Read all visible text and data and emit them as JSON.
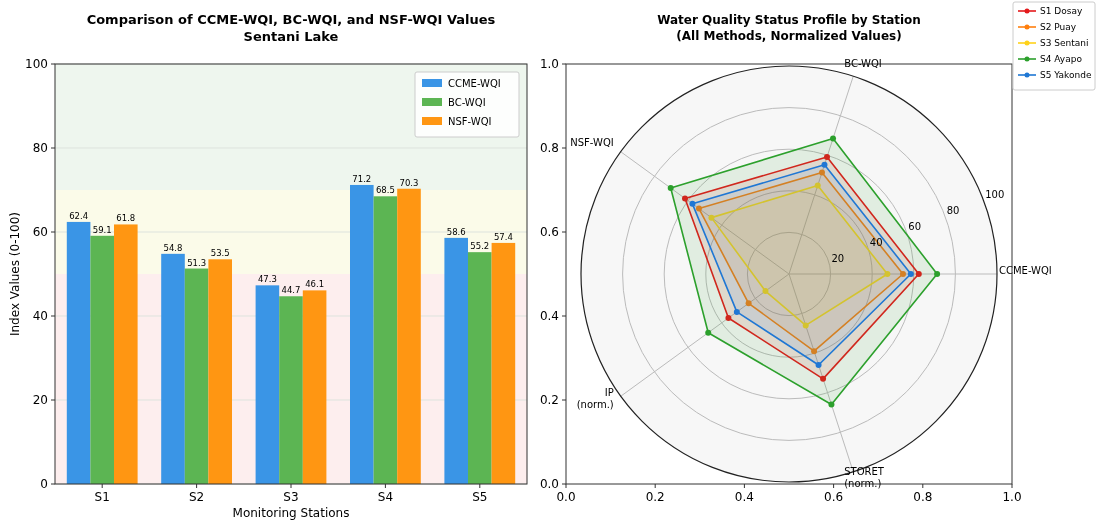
{
  "chart_data": [
    {
      "type": "bar",
      "title": "Comparison of CCME-WQI, BC-WQI, and NSF-WQI Values\nSentani Lake",
      "xlabel": "Monitoring Stations",
      "ylabel": "Index Values (0-100)",
      "categories": [
        "S1",
        "S2",
        "S3",
        "S4",
        "S5"
      ],
      "series": [
        {
          "name": "CCME-WQI",
          "color": "#3a95e6",
          "values": [
            62.4,
            54.8,
            47.3,
            71.2,
            58.6
          ]
        },
        {
          "name": "BC-WQI",
          "color": "#5cb553",
          "values": [
            59.1,
            51.3,
            44.7,
            68.5,
            55.2
          ]
        },
        {
          "name": "NSF-WQI",
          "color": "#ff9612",
          "values": [
            61.8,
            53.5,
            46.1,
            70.3,
            57.4
          ]
        }
      ],
      "ylim": [
        0,
        100
      ],
      "yticks": [
        0,
        20,
        40,
        60,
        80,
        100
      ],
      "grid": "y",
      "legend": "top right",
      "data_labels": true,
      "bands": [
        {
          "axis": "y",
          "from": 0,
          "to": 50,
          "color": "#fdeeee"
        },
        {
          "axis": "y",
          "from": 50,
          "to": 70,
          "color": "#fbfbe9"
        },
        {
          "axis": "y",
          "from": 70,
          "to": 100,
          "color": "#eef6ee"
        }
      ]
    },
    {
      "type": "scatter",
      "xlim": [
        0,
        1
      ],
      "xticks": [
        {
          "value": 0,
          "label": "0.0"
        },
        {
          "value": 0.2,
          "label": "0.2"
        },
        {
          "value": 0.4,
          "label": "0.4"
        },
        {
          "value": 0.6,
          "label": "0.6"
        },
        {
          "value": 0.8,
          "label": "0.8"
        },
        {
          "value": 1,
          "label": "1.0"
        }
      ],
      "ylim": [
        0,
        1
      ],
      "yticks": [
        {
          "value": 0,
          "label": "0.0"
        },
        {
          "value": 0.2,
          "label": "0.2"
        },
        {
          "value": 0.4,
          "label": "0.4"
        },
        {
          "value": 0.6,
          "label": "0.6"
        },
        {
          "value": 0.8,
          "label": "0.8"
        },
        {
          "value": 1,
          "label": "1.0"
        }
      ]
    },
    {
      "type": "radar",
      "title": "Water Quality Status Profile by Station\n(All Methods, Normalized Values)",
      "categories": [
        "BC-WQI",
        "CCME-WQI",
        "STORET\n(norm.)",
        "IP\n(norm.)",
        "NSF-WQI"
      ],
      "series": [
        {
          "name": "S1 Dosay",
          "color": "#e41a1c",
          "values": [
            59.1,
            62.4,
            53,
            36,
            61.8
          ]
        },
        {
          "name": "S2 Puay",
          "color": "#ff7f0e",
          "values": [
            51.3,
            54.8,
            39,
            24,
            53.5
          ]
        },
        {
          "name": "S3 Sentani",
          "color": "#ffd21a",
          "values": [
            44.7,
            47.3,
            26,
            14,
            46.1
          ]
        },
        {
          "name": "S4 Ayapo",
          "color": "#2ca02c",
          "values": [
            68.5,
            71.2,
            66,
            48,
            70.3
          ]
        },
        {
          "name": "S5 Yakonde",
          "color": "#1f77d4",
          "values": [
            55.2,
            58.6,
            46,
            31,
            57.4
          ]
        }
      ],
      "ylim": [
        0,
        100
      ],
      "yticks": [
        20,
        40,
        60,
        80,
        100
      ],
      "grid": true,
      "legend": "top right",
      "marker": "circle"
    }
  ]
}
